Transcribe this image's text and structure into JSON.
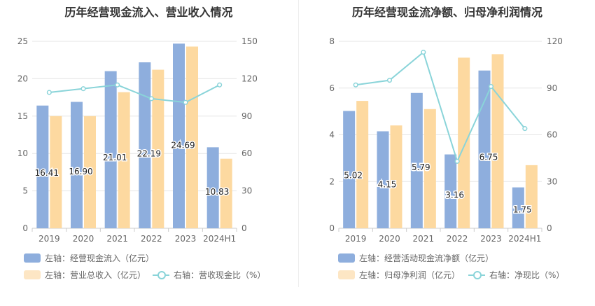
{
  "charts": [
    {
      "title": "历年经营现金流入、营业收入情况",
      "legend": {
        "bar1": "左轴：经营现金流入（亿元）",
        "bar2": "左轴：营业总收入（亿元）",
        "line": "右轴：营收现金比（%）"
      }
    },
    {
      "title": "历年经营现金流净额、归母净利润情况",
      "legend": {
        "bar1": "左轴：经营活动现金流净额（亿元）",
        "bar2": "左轴：归母净利润（亿元）",
        "line": "右轴：净现比（%）"
      }
    }
  ],
  "colors": {
    "bar1": "#8eaedd",
    "bar2": "#fdd9a0",
    "line": "#8ad4d9",
    "axis_text": "#666666",
    "grid": "#e6e6e6"
  },
  "chart_data": [
    {
      "type": "bar",
      "title": "历年经营现金流入、营业收入情况",
      "categories": [
        "2019",
        "2020",
        "2021",
        "2022",
        "2023",
        "2024H1"
      ],
      "y_left_ticks": [
        "0",
        "5",
        "10",
        "15",
        "20",
        "25"
      ],
      "y_right_ticks": [
        "0",
        "30",
        "60",
        "90",
        "120",
        "150"
      ],
      "ylim_left": [
        0,
        25
      ],
      "ylim_right": [
        0,
        150
      ],
      "series": [
        {
          "name": "左轴：经营现金流入（亿元）",
          "axis": "left",
          "type": "bar",
          "values": [
            16.41,
            16.9,
            21.01,
            22.19,
            24.69,
            10.83
          ],
          "labels": [
            "16.41",
            "16.90",
            "21.01",
            "22.19",
            "24.69",
            "10.83"
          ]
        },
        {
          "name": "左轴：营业总收入（亿元）",
          "axis": "left",
          "type": "bar",
          "values": [
            15.0,
            15.0,
            18.2,
            21.2,
            24.3,
            9.3
          ]
        },
        {
          "name": "右轴：营收现金比（%）",
          "axis": "right",
          "type": "line",
          "values": [
            109,
            112,
            115,
            104,
            101,
            115
          ]
        }
      ]
    },
    {
      "type": "bar",
      "title": "历年经营现金流净额、归母净利润情况",
      "categories": [
        "2019",
        "2020",
        "2021",
        "2022",
        "2023",
        "2024H1"
      ],
      "y_left_ticks": [
        "0",
        "2",
        "4",
        "6",
        "8"
      ],
      "y_right_ticks": [
        "0",
        "30",
        "60",
        "90",
        "120"
      ],
      "ylim_left": [
        0,
        8
      ],
      "ylim_right": [
        0,
        120
      ],
      "series": [
        {
          "name": "左轴：经营活动现金流净额（亿元）",
          "axis": "left",
          "type": "bar",
          "values": [
            5.02,
            4.15,
            5.79,
            3.16,
            6.75,
            1.75
          ],
          "labels": [
            "5.02",
            "4.15",
            "5.79",
            "3.16",
            "6.75",
            "1.75"
          ]
        },
        {
          "name": "左轴：归母净利润（亿元）",
          "axis": "left",
          "type": "bar",
          "values": [
            5.45,
            4.4,
            5.1,
            7.3,
            7.45,
            2.7
          ]
        },
        {
          "name": "右轴：净现比（%）",
          "axis": "right",
          "type": "line",
          "values": [
            92,
            95,
            113,
            43,
            91,
            64
          ]
        }
      ]
    }
  ]
}
